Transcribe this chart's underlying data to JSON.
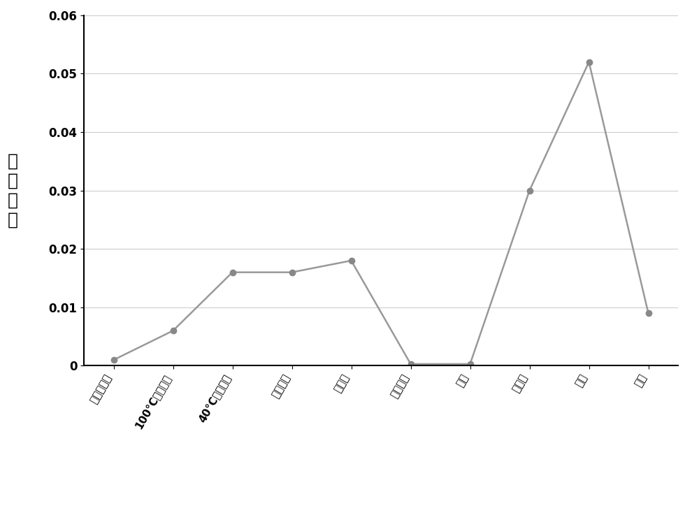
{
  "categories": [
    "饱和烃含量",
    "100°C运动粘度",
    "40°C运动粘度",
    "粘度指数",
    "碱性氮",
    "总氮含量",
    "酸值",
    "硫含量",
    "倾点",
    "闪点"
  ],
  "values": [
    0.001,
    0.006,
    0.016,
    0.016,
    0.018,
    0.0003,
    0.0003,
    0.03,
    0.052,
    0.009
  ],
  "ylabel_chars": [
    "相",
    "对",
    "偏",
    "差"
  ],
  "ylim": [
    0,
    0.06
  ],
  "yticks": [
    0,
    0.01,
    0.02,
    0.03,
    0.04,
    0.05,
    0.06
  ],
  "line_color": "#999999",
  "marker_color": "#888888",
  "bg_color": "#ffffff",
  "grid_color": "#cccccc",
  "bold_labels": [
    "100°C运动粘度",
    "40°C运动粘度"
  ],
  "label_rotation": 60,
  "tick_fontsize": 11,
  "ylabel_fontsize": 18,
  "ytick_fontsize": 12,
  "figsize": [
    10.0,
    7.27
  ],
  "dpi": 100
}
